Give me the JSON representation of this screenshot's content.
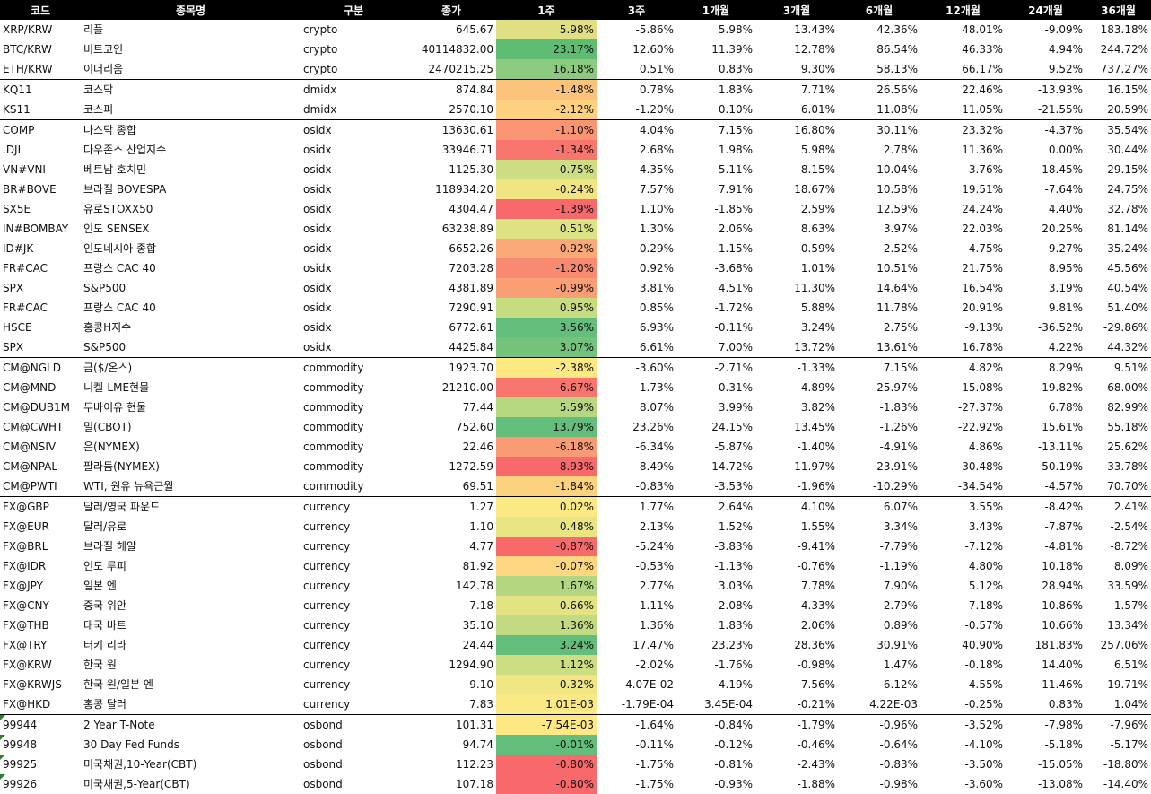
{
  "header": [
    "코드",
    "종목명",
    "구분",
    "종가",
    "1주",
    "3주",
    "1개월",
    "3개월",
    "6개월",
    "12개월",
    "24개월",
    "36개월"
  ],
  "rows": [
    {
      "code": "XRP/KRW",
      "name": "리플",
      "type": "crypto",
      "close": "645.67",
      "w1": "5.98%",
      "w3": "-5.86%",
      "m1": "5.98%",
      "m3": "13.43%",
      "m6": "42.36%",
      "m12": "48.01%",
      "m24": "-9.09%",
      "m36": "183.18%",
      "color": "#e1df84",
      "group_start": false,
      "flag": false
    },
    {
      "code": "BTC/KRW",
      "name": "비트코인",
      "type": "crypto",
      "close": "40114832.00",
      "w1": "23.17%",
      "w3": "12.60%",
      "m1": "11.39%",
      "m3": "12.78%",
      "m6": "86.54%",
      "m12": "46.33%",
      "m24": "4.94%",
      "m36": "244.72%",
      "color": "#5fbc73",
      "group_start": false,
      "flag": false
    },
    {
      "code": "ETH/KRW",
      "name": "이더리움",
      "type": "crypto",
      "close": "2470215.25",
      "w1": "16.18%",
      "w3": "0.51%",
      "m1": "0.83%",
      "m3": "9.30%",
      "m6": "58.13%",
      "m12": "66.17%",
      "m24": "9.52%",
      "m36": "737.27%",
      "color": "#8ccb7f",
      "group_start": false,
      "flag": false
    },
    {
      "code": "KQ11",
      "name": "코스닥",
      "type": "dmidx",
      "close": "874.84",
      "w1": "-1.48%",
      "w3": "0.78%",
      "m1": "1.83%",
      "m3": "7.71%",
      "m6": "26.56%",
      "m12": "22.46%",
      "m24": "-13.93%",
      "m36": "16.15%",
      "color": "#fcc37d",
      "group_start": true,
      "flag": false
    },
    {
      "code": "KS11",
      "name": "코스피",
      "type": "dmidx",
      "close": "2570.10",
      "w1": "-2.12%",
      "w3": "-1.20%",
      "m1": "0.10%",
      "m3": "6.01%",
      "m6": "11.08%",
      "m12": "11.05%",
      "m24": "-21.55%",
      "m36": "20.59%",
      "color": "#fdd17f",
      "group_start": false,
      "flag": false
    },
    {
      "code": "COMP",
      "name": "나스닥 종합",
      "type": "osidx",
      "close": "13630.61",
      "w1": "-1.10%",
      "w3": "4.04%",
      "m1": "7.15%",
      "m3": "16.80%",
      "m6": "30.11%",
      "m12": "23.32%",
      "m24": "-4.37%",
      "m36": "35.54%",
      "color": "#fa9574",
      "group_start": true,
      "flag": false
    },
    {
      "code": ".DJI",
      "name": "다우존스 산업지수",
      "type": "osidx",
      "close": "33946.71",
      "w1": "-1.34%",
      "w3": "2.68%",
      "m1": "1.98%",
      "m3": "5.98%",
      "m6": "2.78%",
      "m12": "11.36%",
      "m24": "0.00%",
      "m36": "30.44%",
      "color": "#f8766d",
      "group_start": false,
      "flag": false
    },
    {
      "code": "VN#VNI",
      "name": "베트남 호치민",
      "type": "osidx",
      "close": "1125.30",
      "w1": "0.75%",
      "w3": "4.35%",
      "m1": "5.11%",
      "m3": "8.15%",
      "m6": "10.04%",
      "m12": "-3.76%",
      "m24": "-18.45%",
      "m36": "29.15%",
      "color": "#cddd82",
      "group_start": false,
      "flag": false
    },
    {
      "code": "BR#BOVE",
      "name": "브라질 BOVESPA",
      "type": "osidx",
      "close": "118934.20",
      "w1": "-0.24%",
      "w3": "7.57%",
      "m1": "7.91%",
      "m3": "18.67%",
      "m6": "10.58%",
      "m12": "19.51%",
      "m24": "-7.64%",
      "m36": "24.75%",
      "color": "#f1e583",
      "group_start": false,
      "flag": false
    },
    {
      "code": "SX5E",
      "name": "유로STOXX50",
      "type": "osidx",
      "close": "4304.47",
      "w1": "-1.39%",
      "w3": "1.10%",
      "m1": "-1.85%",
      "m3": "2.59%",
      "m6": "12.59%",
      "m12": "24.24%",
      "m24": "4.40%",
      "m36": "32.78%",
      "color": "#f8696b",
      "group_start": false,
      "flag": false
    },
    {
      "code": "IN#BOMBAY",
      "name": "인도 SENSEX",
      "type": "osidx",
      "close": "63238.89",
      "w1": "0.51%",
      "w3": "1.30%",
      "m1": "2.06%",
      "m3": "8.63%",
      "m6": "3.97%",
      "m12": "22.03%",
      "m24": "20.25%",
      "m36": "81.14%",
      "color": "#dde283",
      "group_start": false,
      "flag": false
    },
    {
      "code": "ID#JK",
      "name": "인도네시아 종합",
      "type": "osidx",
      "close": "6652.26",
      "w1": "-0.92%",
      "w3": "0.29%",
      "m1": "-1.15%",
      "m3": "-0.59%",
      "m6": "-2.52%",
      "m12": "-4.75%",
      "m24": "9.27%",
      "m36": "35.24%",
      "color": "#fbaa77",
      "group_start": false,
      "flag": false
    },
    {
      "code": "FR#CAC",
      "name": "프랑스 CAC 40",
      "type": "osidx",
      "close": "7203.28",
      "w1": "-1.20%",
      "w3": "0.92%",
      "m1": "-3.68%",
      "m3": "1.01%",
      "m6": "10.51%",
      "m12": "21.75%",
      "m24": "8.95%",
      "m36": "45.56%",
      "color": "#f98a72",
      "group_start": false,
      "flag": false
    },
    {
      "code": "SPX",
      "name": "S&P500",
      "type": "osidx",
      "close": "4381.89",
      "w1": "-0.99%",
      "w3": "3.81%",
      "m1": "4.51%",
      "m3": "11.30%",
      "m6": "14.64%",
      "m12": "16.54%",
      "m24": "3.19%",
      "m36": "40.54%",
      "color": "#fa9e75",
      "group_start": false,
      "flag": false
    },
    {
      "code": "FR#CAC",
      "name": "프랑스 CAC 40",
      "type": "osidx",
      "close": "7290.91",
      "w1": "0.95%",
      "w3": "0.85%",
      "m1": "-1.72%",
      "m3": "5.88%",
      "m6": "11.78%",
      "m12": "20.91%",
      "m24": "9.81%",
      "m36": "51.40%",
      "color": "#c7db81",
      "group_start": false,
      "flag": false
    },
    {
      "code": "HSCE",
      "name": "홍콩H지수",
      "type": "osidx",
      "close": "6772.61",
      "w1": "3.56%",
      "w3": "6.93%",
      "m1": "-0.11%",
      "m3": "3.24%",
      "m6": "2.75%",
      "m12": "-9.13%",
      "m24": "-36.52%",
      "m36": "-29.86%",
      "color": "#63be7b",
      "group_start": false,
      "flag": false
    },
    {
      "code": "SPX",
      "name": "S&P500",
      "type": "osidx",
      "close": "4425.84",
      "w1": "3.07%",
      "w3": "6.61%",
      "m1": "7.00%",
      "m3": "13.72%",
      "m6": "13.61%",
      "m12": "16.78%",
      "m24": "4.22%",
      "m36": "44.32%",
      "color": "#74c37c",
      "group_start": false,
      "flag": false
    },
    {
      "code": "CM@NGLD",
      "name": "금($/온스)",
      "type": "commodity",
      "close": "1923.70",
      "w1": "-2.38%",
      "w3": "-3.60%",
      "m1": "-2.71%",
      "m3": "-1.33%",
      "m6": "7.15%",
      "m12": "4.82%",
      "m24": "8.29%",
      "m36": "9.51%",
      "color": "#fee883",
      "group_start": true,
      "flag": false
    },
    {
      "code": "CM@MND",
      "name": "니켈-LME현물",
      "type": "commodity",
      "close": "21210.00",
      "w1": "-6.67%",
      "w3": "1.73%",
      "m1": "-0.31%",
      "m3": "-4.89%",
      "m6": "-25.97%",
      "m12": "-15.08%",
      "m24": "19.82%",
      "m36": "68.00%",
      "color": "#f8756d",
      "group_start": false,
      "flag": false
    },
    {
      "code": "CM@DUB1M",
      "name": "두바이유 현물",
      "type": "commodity",
      "close": "77.44",
      "w1": "5.59%",
      "w3": "8.07%",
      "m1": "3.99%",
      "m3": "3.82%",
      "m6": "-1.83%",
      "m12": "-27.37%",
      "m24": "6.78%",
      "m36": "82.99%",
      "color": "#b6d680",
      "group_start": false,
      "flag": false
    },
    {
      "code": "CM@CWHT",
      "name": "밀(CBOT)",
      "type": "commodity",
      "close": "752.60",
      "w1": "13.79%",
      "w3": "23.26%",
      "m1": "24.15%",
      "m3": "13.45%",
      "m6": "-1.26%",
      "m12": "-22.92%",
      "m24": "15.61%",
      "m36": "55.18%",
      "color": "#63be7b",
      "group_start": false,
      "flag": false
    },
    {
      "code": "CM@NSIV",
      "name": "은(NYMEX)",
      "type": "commodity",
      "close": "22.46",
      "w1": "-6.18%",
      "w3": "-6.34%",
      "m1": "-5.87%",
      "m3": "-1.40%",
      "m6": "-4.91%",
      "m12": "4.86%",
      "m24": "-13.11%",
      "m36": "25.62%",
      "color": "#f99b74",
      "group_start": false,
      "flag": false
    },
    {
      "code": "CM@NPAL",
      "name": "팔라듐(NYMEX)",
      "type": "commodity",
      "close": "1272.59",
      "w1": "-8.93%",
      "w3": "-8.49%",
      "m1": "-14.72%",
      "m3": "-11.97%",
      "m6": "-23.91%",
      "m12": "-30.48%",
      "m24": "-50.19%",
      "m36": "-33.78%",
      "color": "#f8696b",
      "group_start": false,
      "flag": false
    },
    {
      "code": "CM@PWTI",
      "name": "WTI, 원유 뉴욕근월",
      "type": "commodity",
      "close": "69.51",
      "w1": "-1.84%",
      "w3": "-0.83%",
      "m1": "-3.53%",
      "m3": "-1.96%",
      "m6": "-10.29%",
      "m12": "-34.54%",
      "m24": "-4.57%",
      "m36": "70.70%",
      "color": "#fdd27f",
      "group_start": false,
      "flag": false
    },
    {
      "code": "FX@GBP",
      "name": "달러/영국 파운드",
      "type": "currency",
      "close": "1.27",
      "w1": "0.02%",
      "w3": "1.77%",
      "m1": "2.64%",
      "m3": "4.10%",
      "m6": "6.07%",
      "m12": "3.55%",
      "m24": "-8.42%",
      "m36": "2.41%",
      "color": "#fbe983",
      "group_start": true,
      "flag": false
    },
    {
      "code": "FX@EUR",
      "name": "달러/유로",
      "type": "currency",
      "close": "1.10",
      "w1": "0.48%",
      "w3": "2.13%",
      "m1": "1.52%",
      "m3": "1.55%",
      "m6": "3.34%",
      "m12": "3.43%",
      "m24": "-7.87%",
      "m36": "-2.54%",
      "color": "#eae583",
      "group_start": false,
      "flag": false
    },
    {
      "code": "FX@BRL",
      "name": "브라질 헤알",
      "type": "currency",
      "close": "4.77",
      "w1": "-0.87%",
      "w3": "-5.24%",
      "m1": "-3.83%",
      "m3": "-9.41%",
      "m6": "-7.79%",
      "m12": "-7.12%",
      "m24": "-4.81%",
      "m36": "-8.72%",
      "color": "#f8696b",
      "group_start": false,
      "flag": false
    },
    {
      "code": "FX@IDR",
      "name": "인도 루피",
      "type": "currency",
      "close": "81.92",
      "w1": "-0.07%",
      "w3": "-0.53%",
      "m1": "-1.13%",
      "m3": "-0.76%",
      "m6": "-1.19%",
      "m12": "4.80%",
      "m24": "10.18%",
      "m36": "8.09%",
      "color": "#fed780",
      "group_start": false,
      "flag": false
    },
    {
      "code": "FX@JPY",
      "name": "일본 엔",
      "type": "currency",
      "close": "142.78",
      "w1": "1.67%",
      "w3": "2.77%",
      "m1": "3.03%",
      "m3": "7.78%",
      "m6": "7.90%",
      "m12": "5.12%",
      "m24": "28.94%",
      "m36": "33.59%",
      "color": "#b5d680",
      "group_start": false,
      "flag": false
    },
    {
      "code": "FX@CNY",
      "name": "중국 위안",
      "type": "currency",
      "close": "7.18",
      "w1": "0.66%",
      "w3": "1.11%",
      "m1": "2.08%",
      "m3": "4.33%",
      "m6": "2.79%",
      "m12": "7.18%",
      "m24": "10.86%",
      "m36": "1.57%",
      "color": "#e2e383",
      "group_start": false,
      "flag": false
    },
    {
      "code": "FX@THB",
      "name": "태국 바트",
      "type": "currency",
      "close": "35.10",
      "w1": "1.36%",
      "w3": "1.36%",
      "m1": "1.83%",
      "m3": "2.06%",
      "m6": "0.89%",
      "m12": "-0.57%",
      "m24": "10.66%",
      "m36": "13.34%",
      "color": "#c2da81",
      "group_start": false,
      "flag": false
    },
    {
      "code": "FX@TRY",
      "name": "터키 리라",
      "type": "currency",
      "close": "24.44",
      "w1": "3.24%",
      "w3": "17.47%",
      "m1": "23.23%",
      "m3": "28.36%",
      "m6": "30.91%",
      "m12": "40.90%",
      "m24": "181.83%",
      "m36": "257.06%",
      "color": "#63be7b",
      "group_start": false,
      "flag": false
    },
    {
      "code": "FX@KRW",
      "name": "한국 원",
      "type": "currency",
      "close": "1294.90",
      "w1": "1.12%",
      "w3": "-2.02%",
      "m1": "-1.76%",
      "m3": "-0.98%",
      "m6": "1.47%",
      "m12": "-0.18%",
      "m24": "14.40%",
      "m36": "6.51%",
      "color": "#cddd82",
      "group_start": false,
      "flag": false
    },
    {
      "code": "FX@KRWJS",
      "name": "한국 원/일본 엔",
      "type": "currency",
      "close": "9.10",
      "w1": "0.32%",
      "w3": "-4.07E-02",
      "m1": "-4.19%",
      "m3": "-7.56%",
      "m6": "-6.12%",
      "m12": "-4.55%",
      "m24": "-11.46%",
      "m36": "-19.71%",
      "color": "#f0e683",
      "group_start": false,
      "flag": false
    },
    {
      "code": "FX@HKD",
      "name": "홍콩 달러",
      "type": "currency",
      "close": "7.83",
      "w1": "1.01E-03",
      "w3": "-1.79E-04",
      "m1": "3.45E-04",
      "m3": "-0.21%",
      "m6": "4.22E-03",
      "m12": "-0.25%",
      "m24": "0.83%",
      "m36": "1.04%",
      "color": "#fbe983",
      "group_start": false,
      "flag": false
    },
    {
      "code": "99944",
      "name": "2 Year T-Note",
      "type": "osbond",
      "close": "101.31",
      "w1": "-7.54E-03",
      "w3": "-1.64%",
      "m1": "-0.84%",
      "m3": "-1.79%",
      "m6": "-0.96%",
      "m12": "-3.52%",
      "m24": "-7.98%",
      "m36": "-7.96%",
      "color": "#fee883",
      "group_start": true,
      "flag": true
    },
    {
      "code": "99948",
      "name": "30 Day Fed Funds",
      "type": "osbond",
      "close": "94.74",
      "w1": "-0.01%",
      "w3": "-0.11%",
      "m1": "-0.12%",
      "m3": "-0.46%",
      "m6": "-0.64%",
      "m12": "-4.10%",
      "m24": "-5.18%",
      "m36": "-5.17%",
      "color": "#63be7b",
      "group_start": false,
      "flag": true
    },
    {
      "code": "99925",
      "name": "미국채권,10-Year(CBT)",
      "type": "osbond",
      "close": "112.23",
      "w1": "-0.80%",
      "w3": "-1.75%",
      "m1": "-0.81%",
      "m3": "-2.43%",
      "m6": "-0.83%",
      "m12": "-3.50%",
      "m24": "-15.05%",
      "m36": "-18.80%",
      "color": "#f8696b",
      "group_start": false,
      "flag": true
    },
    {
      "code": "99926",
      "name": "미국채권,5-Year(CBT)",
      "type": "osbond",
      "close": "107.18",
      "w1": "-0.80%",
      "w3": "-1.75%",
      "m1": "-0.93%",
      "m3": "-1.88%",
      "m6": "-0.98%",
      "m12": "-3.60%",
      "m24": "-13.08%",
      "m36": "-14.40%",
      "color": "#f8696b",
      "group_start": false,
      "flag": true
    }
  ]
}
